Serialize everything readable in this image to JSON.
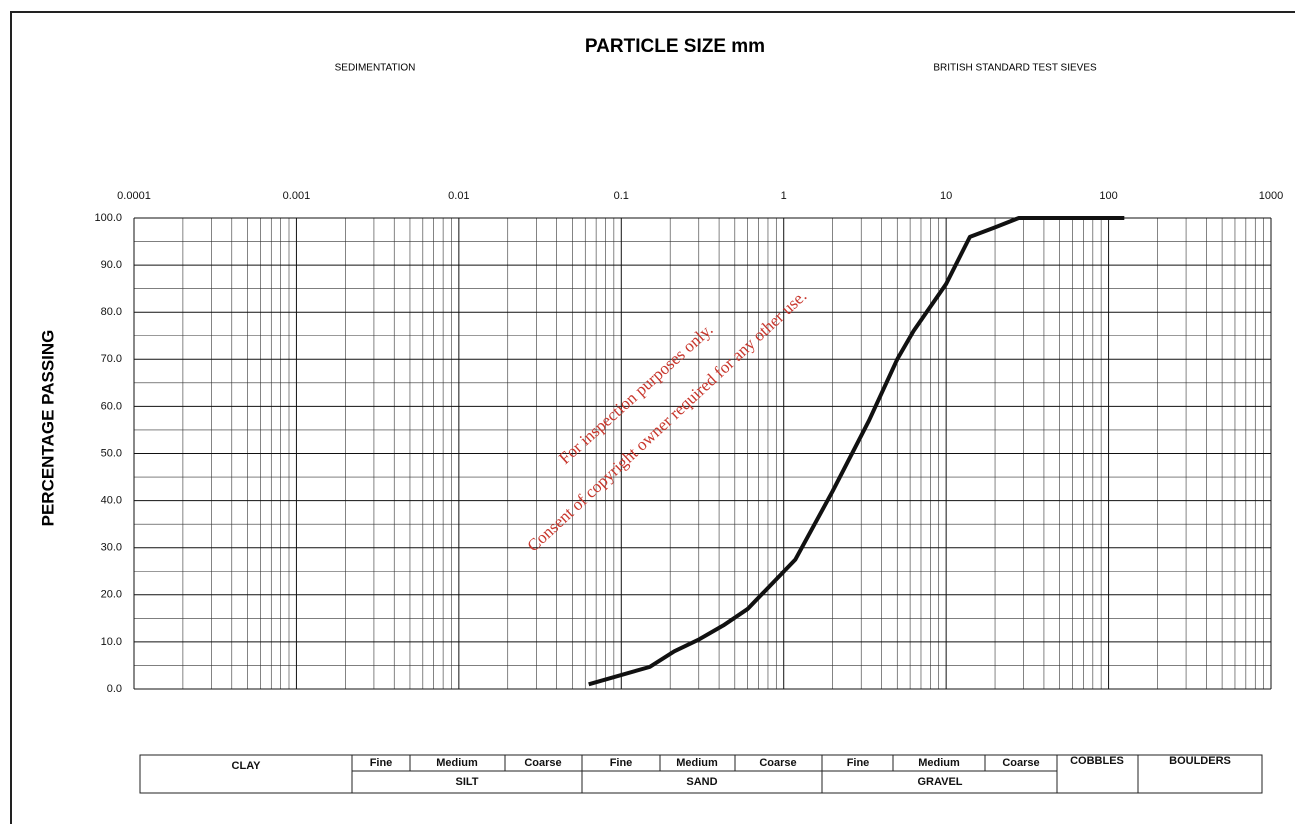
{
  "chart_data": {
    "type": "line",
    "title": "PARTICLE SIZE mm",
    "subtitles": [
      "SEDIMENTATION",
      "BRITISH STANDARD TEST SIEVES"
    ],
    "y_label": "PERCENTAGE PASSING",
    "annotations": [
      "For inspection purposes only.",
      "Consent of copyright owner required for any other use."
    ],
    "x_scale": "log",
    "grid": true,
    "minor_grid": true,
    "xlim": [
      0.0001,
      1000
    ],
    "xticks": [
      0.0001,
      0.001,
      0.01,
      0.1,
      1,
      10,
      100,
      1000
    ],
    "ylim": [
      0,
      100
    ],
    "yticks": [
      {
        "value": 0,
        "label": "0.0"
      },
      {
        "value": 10,
        "label": "10.0"
      },
      {
        "value": 20,
        "label": "20.0"
      },
      {
        "value": 30,
        "label": "30.0"
      },
      {
        "value": 40,
        "label": "40.0"
      },
      {
        "value": 50,
        "label": "50.0"
      },
      {
        "value": 60,
        "label": "60.0"
      },
      {
        "value": 70,
        "label": "70.0"
      },
      {
        "value": 80,
        "label": "80.0"
      },
      {
        "value": 90,
        "label": "90.0"
      },
      {
        "value": 100,
        "label": "100.0"
      }
    ],
    "x": [
      0.063,
      0.15,
      0.212,
      0.3,
      0.425,
      0.6,
      1.18,
      2,
      3.35,
      5,
      6.3,
      10,
      14,
      20,
      28,
      37.5,
      50,
      63,
      75,
      100,
      125
    ],
    "series": [
      {
        "color": "#111111",
        "values": [
          1,
          4.7,
          8,
          10.5,
          13.5,
          17,
          27.5,
          42,
          57,
          70,
          76,
          86,
          96,
          98,
          100,
          100,
          100,
          100,
          100,
          100,
          100
        ]
      }
    ]
  },
  "classification_table": {
    "clay": "CLAY",
    "silt": {
      "name": "SILT",
      "parts": [
        "Fine",
        "Medium",
        "Coarse"
      ]
    },
    "sand": {
      "name": "SAND",
      "parts": [
        "Fine",
        "Medium",
        "Coarse"
      ]
    },
    "gravel": {
      "name": "GRAVEL",
      "parts": [
        "Fine",
        "Medium",
        "Coarse"
      ]
    },
    "cobbles": "COBBLES",
    "boulders": "BOULDERS"
  }
}
